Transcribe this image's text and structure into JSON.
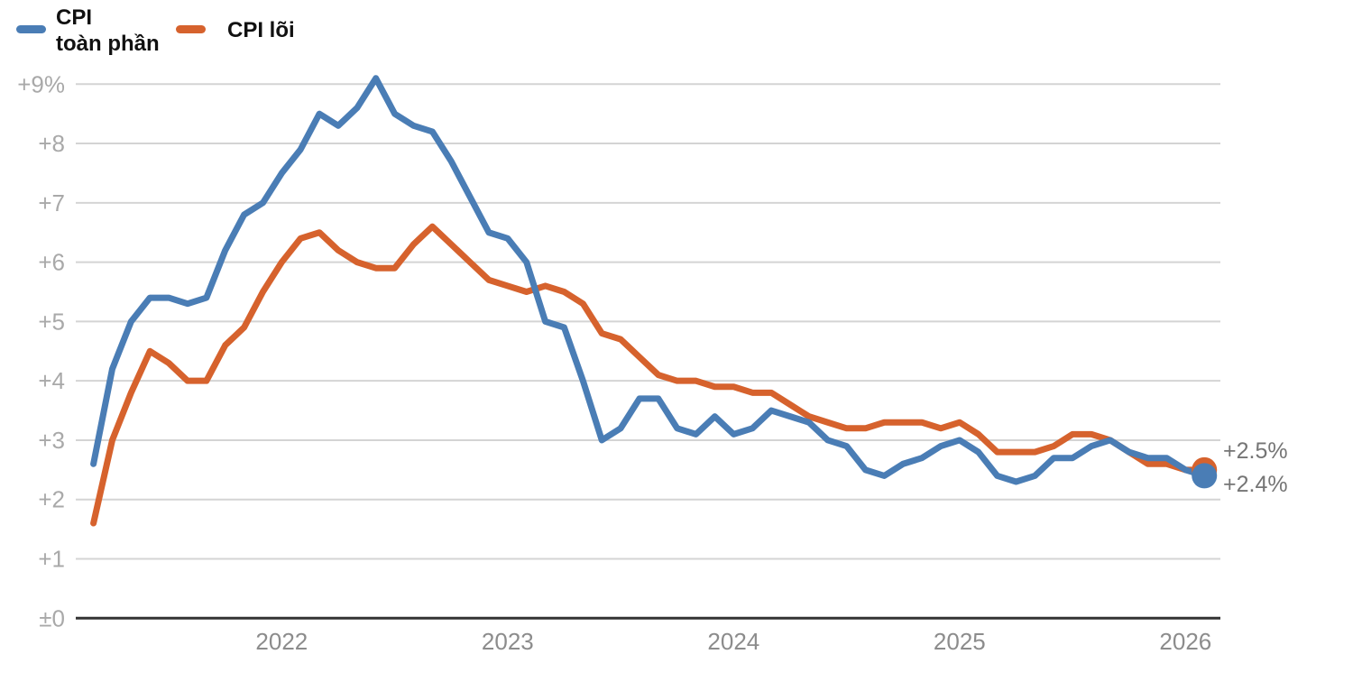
{
  "legend": {
    "items": [
      {
        "label_line1": "CPI",
        "label_line2": "toàn phần"
      },
      {
        "label_line1": "CPI lõi",
        "label_line2": ""
      }
    ]
  },
  "annotations": {
    "core_end_label": "+2.5%",
    "headline_end_label": "+2.4%"
  },
  "colors": {
    "headline_blue": "#4a7db5",
    "core_orange": "#d6622d",
    "gridline": "#d4d4d4",
    "zero_axis": "#333333",
    "y_tick_text": "#a9a9a9",
    "x_tick_text": "#8c8c8c",
    "end_label_text": "#757575",
    "legend_text": "#111111"
  },
  "chart_data": {
    "type": "line",
    "title": "",
    "xlabel": "",
    "ylabel": "",
    "frequency": "monthly",
    "x_start": "2021-03",
    "x_end": "2026-02",
    "ylim": [
      0,
      9.3
    ],
    "grid": true,
    "legend_position": "top-left",
    "end_dots": true,
    "categories": [
      "2021-03",
      "2021-04",
      "2021-05",
      "2021-06",
      "2021-07",
      "2021-08",
      "2021-09",
      "2021-10",
      "2021-11",
      "2021-12",
      "2022-01",
      "2022-02",
      "2022-03",
      "2022-04",
      "2022-05",
      "2022-06",
      "2022-07",
      "2022-08",
      "2022-09",
      "2022-10",
      "2022-11",
      "2022-12",
      "2023-01",
      "2023-02",
      "2023-03",
      "2023-04",
      "2023-05",
      "2023-06",
      "2023-07",
      "2023-08",
      "2023-09",
      "2023-10",
      "2023-11",
      "2023-12",
      "2024-01",
      "2024-02",
      "2024-03",
      "2024-04",
      "2024-05",
      "2024-06",
      "2024-07",
      "2024-08",
      "2024-09",
      "2024-10",
      "2024-11",
      "2024-12",
      "2025-01",
      "2025-02",
      "2025-03",
      "2025-04",
      "2025-05",
      "2025-06",
      "2025-07",
      "2025-08",
      "2025-09",
      "2025-10",
      "2025-11",
      "2025-12",
      "2026-01",
      "2026-02"
    ],
    "series": [
      {
        "name": "CPI lõi",
        "color": "#d6622d",
        "values": [
          1.6,
          3.0,
          3.8,
          4.5,
          4.3,
          4.0,
          4.0,
          4.6,
          4.9,
          5.5,
          6.0,
          6.4,
          6.5,
          6.2,
          6.0,
          5.9,
          5.9,
          6.3,
          6.6,
          6.3,
          6.0,
          5.7,
          5.6,
          5.5,
          5.6,
          5.5,
          5.3,
          4.8,
          4.7,
          4.4,
          4.1,
          4.0,
          4.0,
          3.9,
          3.9,
          3.8,
          3.8,
          3.6,
          3.4,
          3.3,
          3.2,
          3.2,
          3.3,
          3.3,
          3.3,
          3.2,
          3.3,
          3.1,
          2.8,
          2.8,
          2.8,
          2.9,
          3.1,
          3.1,
          3.0,
          2.8,
          2.6,
          2.6,
          2.5,
          2.5
        ]
      },
      {
        "name": "CPI toàn phần",
        "color": "#4a7db5",
        "values": [
          2.6,
          4.2,
          5.0,
          5.4,
          5.4,
          5.3,
          5.4,
          6.2,
          6.8,
          7.0,
          7.5,
          7.9,
          8.5,
          8.3,
          8.6,
          9.1,
          8.5,
          8.3,
          8.2,
          7.7,
          7.1,
          6.5,
          6.4,
          6.0,
          5.0,
          4.9,
          4.0,
          3.0,
          3.2,
          3.7,
          3.7,
          3.2,
          3.1,
          3.4,
          3.1,
          3.2,
          3.5,
          3.4,
          3.3,
          3.0,
          2.9,
          2.5,
          2.4,
          2.6,
          2.7,
          2.9,
          3.0,
          2.8,
          2.4,
          2.3,
          2.4,
          2.7,
          2.7,
          2.9,
          3.0,
          2.8,
          2.7,
          2.7,
          2.5,
          2.4
        ]
      }
    ],
    "y_ticks": [
      {
        "value": 9,
        "label": "+9%"
      },
      {
        "value": 8,
        "label": "+8"
      },
      {
        "value": 7,
        "label": "+7"
      },
      {
        "value": 6,
        "label": "+6"
      },
      {
        "value": 5,
        "label": "+5"
      },
      {
        "value": 4,
        "label": "+4"
      },
      {
        "value": 3,
        "label": "+3"
      },
      {
        "value": 2,
        "label": "+2"
      },
      {
        "value": 1,
        "label": "+1"
      },
      {
        "value": 0,
        "label": "±0"
      }
    ],
    "x_ticks": [
      {
        "month_index": 10,
        "label": "2022"
      },
      {
        "month_index": 22,
        "label": "2023"
      },
      {
        "month_index": 34,
        "label": "2024"
      },
      {
        "month_index": 46,
        "label": "2025"
      },
      {
        "month_index": 58,
        "label": "2026"
      }
    ]
  }
}
